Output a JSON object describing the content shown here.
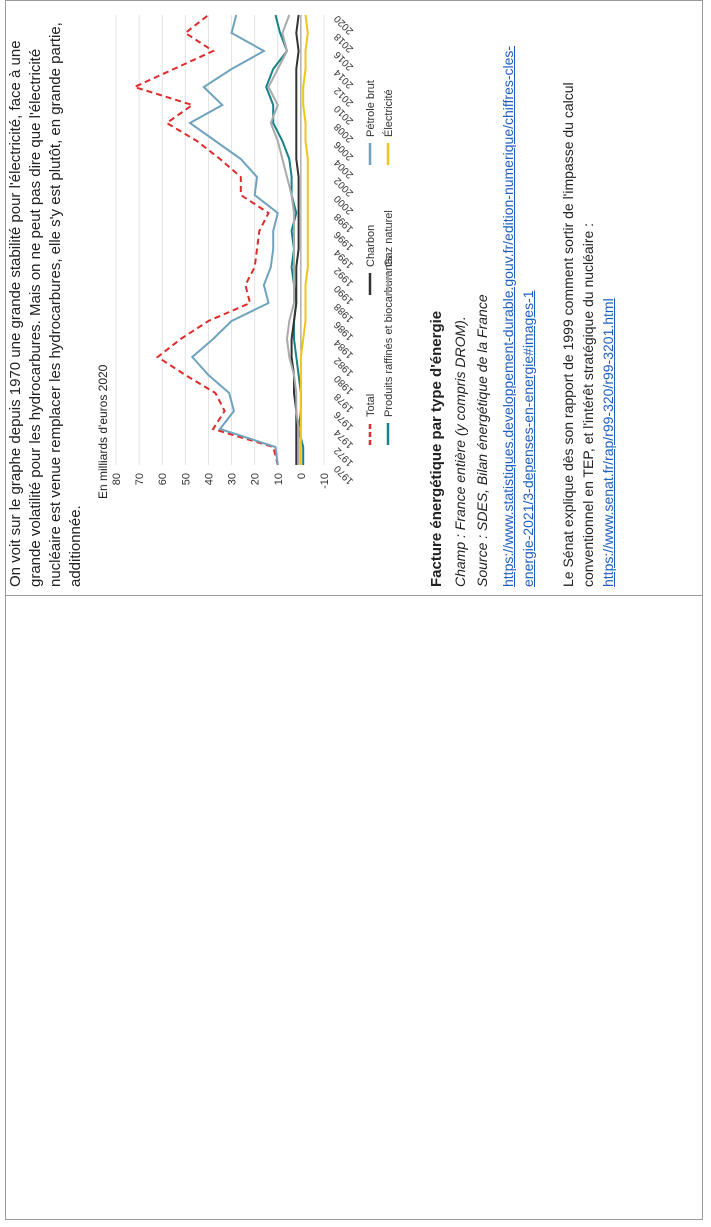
{
  "text": {
    "intro": "On voit sur le graphe depuis 1970 une grande stabilité pour l'électricité, face à une grande volatilité pour les hydrocarbures. Mais on ne peut pas dire que l'électricité nucléaire est venue remplacer les hydrocarbures, elle s'y est plutôt, en grande partie, additionnée.",
    "caption_title": "Facture énergétique par type d'énergie",
    "champ": "Champ : France entière (y compris DROM).",
    "source": "Source : SDES, Bilan énergétique de la France",
    "url1": "https://www.statistiques.developpement-durable.gouv.fr/edition-numerique/chiffres-cles-energie-2021/3-depenses-en-energie#images-1",
    "senat_text": "Le Sénat explique dès son rapport de 1999 comment sortir de l'impasse du calcul conventionnel en TEP, et l'intérêt stratégique du nucléaire :",
    "url2": "https://www.senat.fr/rap/r99-320/r99-3201.html"
  },
  "chart_data": {
    "type": "line",
    "unit_label": "En milliards d'euros 2020",
    "x": [
      1970,
      1972,
      1974,
      1976,
      1978,
      1980,
      1982,
      1984,
      1986,
      1988,
      1990,
      1992,
      1994,
      1996,
      1998,
      2000,
      2002,
      2004,
      2006,
      2008,
      2010,
      2012,
      2014,
      2016,
      2018,
      2020
    ],
    "x_ticks": [
      "1970",
      "1972",
      "1974",
      "1976",
      "1978",
      "1980",
      "1982",
      "1984",
      "1986",
      "1988",
      "1990",
      "1992",
      "1994",
      "1996",
      "1998",
      "2000",
      "2002",
      "2004",
      "2006",
      "2008",
      "2010",
      "2012",
      "2014",
      "2016",
      "2018",
      "2020"
    ],
    "ylim": [
      -10,
      80
    ],
    "y_ticks": [
      -10,
      0,
      10,
      20,
      30,
      40,
      50,
      60,
      70,
      80
    ],
    "colors": {
      "Total": "#e02b2b",
      "Produits raffinés et biocarburants": "#17828a",
      "Charbon": "#333333",
      "Gaz naturel": "#aaaaaa",
      "Pétrole brut": "#6fa3bd",
      "Électricité": "#f0c419"
    },
    "series": [
      {
        "name": "Total",
        "values": [
          10,
          12,
          38,
          33,
          37,
          50,
          62,
          52,
          40,
          22,
          24,
          20,
          19,
          18,
          14,
          26,
          26,
          35,
          45,
          58,
          47,
          72,
          55,
          38,
          50,
          40
        ]
      },
      {
        "name": "Pétrole brut",
        "values": [
          10,
          11,
          35,
          29,
          31,
          40,
          47,
          38,
          30,
          14,
          16,
          13,
          12,
          12,
          10,
          20,
          19,
          26,
          37,
          48,
          34,
          42,
          30,
          16,
          30,
          28
        ]
      },
      {
        "name": "Produits raffinés et biocarburants",
        "values": [
          -1,
          -1,
          1,
          0,
          0,
          1,
          2,
          3,
          3,
          2,
          3,
          4,
          3,
          4,
          2,
          4,
          4,
          5,
          8,
          12,
          12,
          15,
          12,
          6,
          9,
          11
        ]
      },
      {
        "name": "Charbon",
        "values": [
          2,
          2,
          2,
          2,
          3,
          3,
          4,
          4,
          3,
          2,
          2,
          2,
          1,
          1,
          1,
          1,
          1,
          2,
          2,
          2,
          2,
          2,
          2,
          1,
          2,
          1
        ]
      },
      {
        "name": "Gaz naturel",
        "values": [
          1,
          1,
          1,
          2,
          2,
          3,
          5,
          6,
          5,
          3,
          3,
          3,
          3,
          3,
          3,
          4,
          6,
          8,
          10,
          13,
          10,
          14,
          10,
          6,
          8,
          5
        ]
      },
      {
        "name": "Électricité",
        "values": [
          0,
          0,
          0,
          0,
          0,
          0,
          0,
          -1,
          -2,
          -2,
          -2,
          -3,
          -3,
          -3,
          -3,
          -3,
          -3,
          -3,
          -2,
          -2,
          -1,
          -1,
          -2,
          -2,
          -3,
          -2
        ]
      }
    ],
    "legend": [
      {
        "label": "Total"
      },
      {
        "label": "Produits raffinés et biocarburants"
      },
      {
        "label": "Charbon"
      },
      {
        "label": "Gaz naturel"
      },
      {
        "label": "Pétrole brut"
      },
      {
        "label": "Électricité"
      }
    ]
  }
}
